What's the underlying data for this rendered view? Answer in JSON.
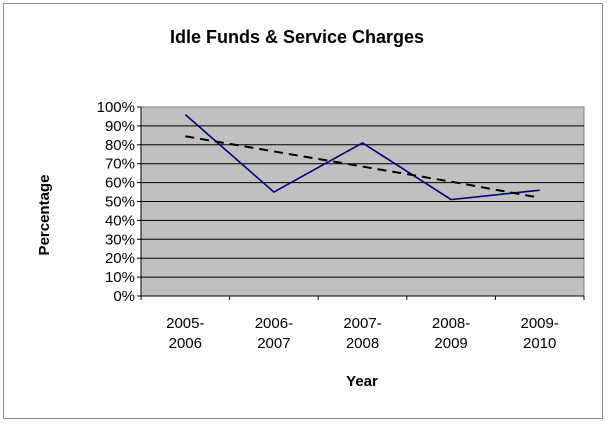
{
  "chart_data": {
    "type": "line",
    "title": "Idle Funds & Service Charges",
    "xlabel": "Year",
    "ylabel": "Percentage",
    "categories": [
      [
        "2005-",
        "2006"
      ],
      [
        "2006-",
        "2007"
      ],
      [
        "2007-",
        "2008"
      ],
      [
        "2008-",
        "2009"
      ],
      [
        "2009-",
        "2010"
      ]
    ],
    "ylim": [
      0,
      100
    ],
    "y_ticks": [
      "0%",
      "10%",
      "20%",
      "30%",
      "40%",
      "50%",
      "60%",
      "70%",
      "80%",
      "90%",
      "100%"
    ],
    "grid": true,
    "plot_background": "#c0c0c0",
    "series": [
      {
        "values": [
          96,
          55,
          81,
          51,
          56
        ],
        "color": "#000080",
        "style": "solid"
      },
      {
        "values": [
          84.5,
          76.5,
          68.5,
          60.5,
          52
        ],
        "color": "#000000",
        "style": "dashed",
        "kind": "linear-trendline"
      }
    ]
  }
}
